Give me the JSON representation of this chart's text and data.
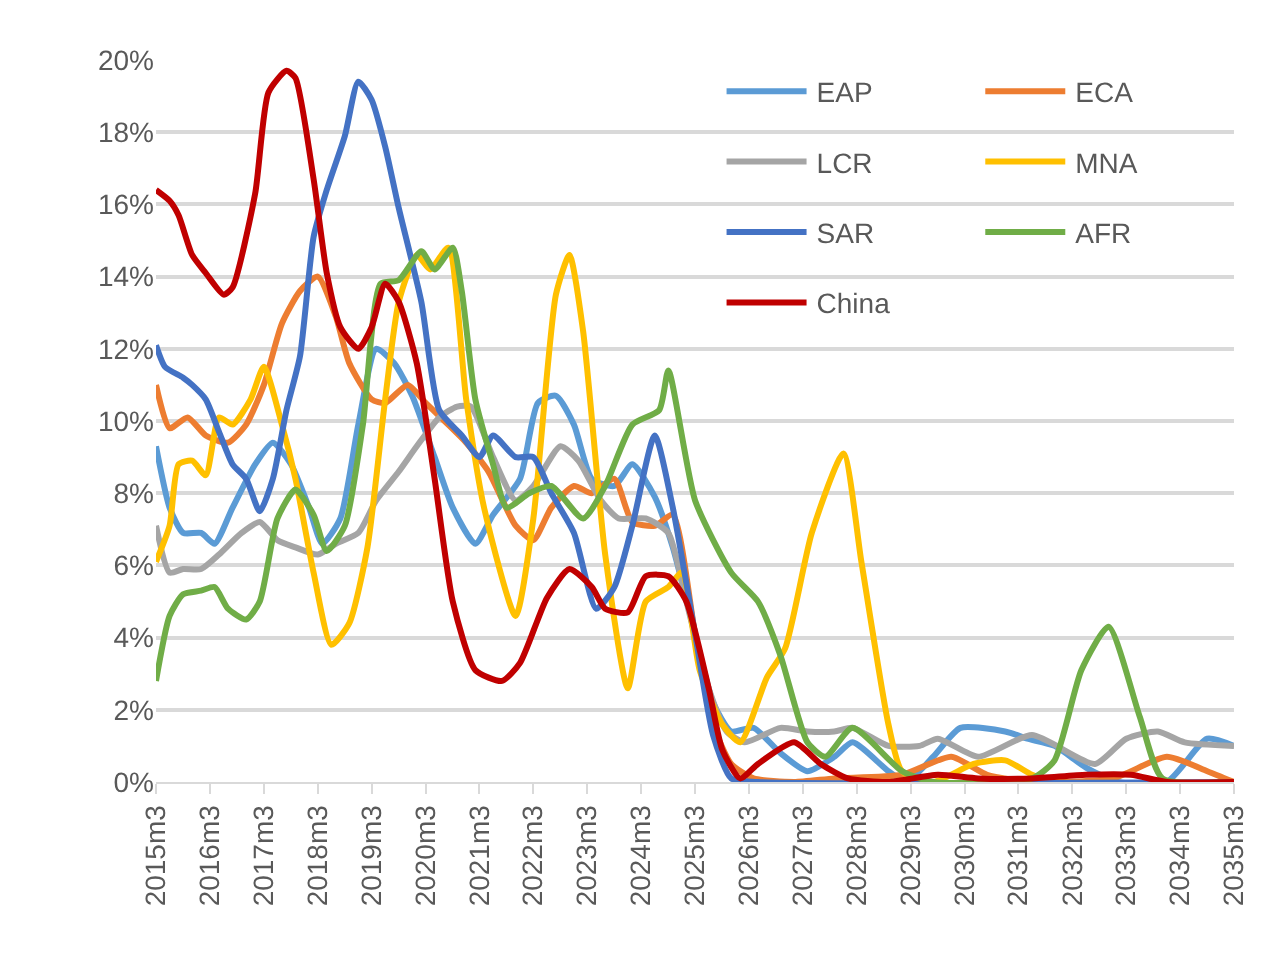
{
  "chart_data": {
    "type": "line",
    "xlim": [
      "2015-03",
      "2035-03"
    ],
    "ylim": [
      0,
      20
    ],
    "xticks": [
      {
        "value": "2015-03",
        "label": "2015m3"
      },
      {
        "value": "2016-03",
        "label": "2016m3"
      },
      {
        "value": "2017-03",
        "label": "2017m3"
      },
      {
        "value": "2018-03",
        "label": "2018m3"
      },
      {
        "value": "2019-03",
        "label": "2019m3"
      },
      {
        "value": "2020-03",
        "label": "2020m3"
      },
      {
        "value": "2021-03",
        "label": "2021m3"
      },
      {
        "value": "2022-03",
        "label": "2022m3"
      },
      {
        "value": "2023-03",
        "label": "2023m3"
      },
      {
        "value": "2024-03",
        "label": "2024m3"
      },
      {
        "value": "2025-03",
        "label": "2025m3"
      },
      {
        "value": "2026-03",
        "label": "2026m3"
      },
      {
        "value": "2027-03",
        "label": "2027m3"
      },
      {
        "value": "2028-03",
        "label": "2028m3"
      },
      {
        "value": "2029-03",
        "label": "2029m3"
      },
      {
        "value": "2030-03",
        "label": "2030m3"
      },
      {
        "value": "2031-03",
        "label": "2031m3"
      },
      {
        "value": "2032-03",
        "label": "2032m3"
      },
      {
        "value": "2033-03",
        "label": "2033m3"
      },
      {
        "value": "2034-03",
        "label": "2034m3"
      },
      {
        "value": "2035-03",
        "label": "2035m3"
      }
    ],
    "yticks": [
      {
        "value": 0,
        "label": "0%"
      },
      {
        "value": 2,
        "label": "2%"
      },
      {
        "value": 4,
        "label": "4%"
      },
      {
        "value": 6,
        "label": "6%"
      },
      {
        "value": 8,
        "label": "8%"
      },
      {
        "value": 10,
        "label": "10%"
      },
      {
        "value": 12,
        "label": "12%"
      },
      {
        "value": 14,
        "label": "14%"
      },
      {
        "value": 16,
        "label": "16%"
      },
      {
        "value": 18,
        "label": "18%"
      },
      {
        "value": 20,
        "label": "20%"
      }
    ],
    "grid": "y",
    "legend": "top right",
    "marker": "none",
    "line_style": "solid",
    "series": [
      {
        "name": "EAP",
        "color": "#5b9bd5",
        "x": [
          "2015-03",
          "2015-06",
          "2015-09",
          "2016-01",
          "2016-04",
          "2016-08",
          "2017-01",
          "2017-05",
          "2017-09",
          "2018-01",
          "2018-04",
          "2018-08",
          "2018-12",
          "2019-04",
          "2019-08",
          "2019-12",
          "2020-05",
          "2020-09",
          "2021-02",
          "2021-06",
          "2021-12",
          "2022-04",
          "2022-08",
          "2022-12",
          "2023-04",
          "2023-09",
          "2024-01",
          "2024-06",
          "2024-10",
          "2025-03",
          "2025-07",
          "2025-11",
          "2026-04",
          "2026-10",
          "2027-04",
          "2027-10",
          "2028-02",
          "2028-10",
          "2029-02",
          "2029-08",
          "2030-02",
          "2030-12",
          "2031-05",
          "2031-11",
          "2032-06",
          "2033-01",
          "2033-12",
          "2034-09",
          "2035-03"
        ],
        "values": [
          9.3,
          7.6,
          6.9,
          6.9,
          6.6,
          7.6,
          8.8,
          9.4,
          8.8,
          7.6,
          6.6,
          7.3,
          9.9,
          12.0,
          11.6,
          10.7,
          9.0,
          7.6,
          6.6,
          7.4,
          8.4,
          10.5,
          10.7,
          9.9,
          8.4,
          8.2,
          8.8,
          7.9,
          6.5,
          4.1,
          2.2,
          1.4,
          1.5,
          0.8,
          0.3,
          0.7,
          1.1,
          0.3,
          0.0,
          0.7,
          1.5,
          1.4,
          1.2,
          1.0,
          0.4,
          0.0,
          0.0,
          1.2,
          1.0
        ]
      },
      {
        "name": "ECA",
        "color": "#ed7d31",
        "x": [
          "2015-03",
          "2015-06",
          "2015-10",
          "2016-02",
          "2016-07",
          "2016-11",
          "2017-03",
          "2017-07",
          "2017-11",
          "2018-03",
          "2018-07",
          "2018-10",
          "2019-03",
          "2019-06",
          "2019-11",
          "2020-03",
          "2020-08",
          "2020-12",
          "2021-05",
          "2021-11",
          "2022-03",
          "2022-07",
          "2022-12",
          "2023-04",
          "2023-09",
          "2024-01",
          "2024-06",
          "2024-10",
          "2025-03",
          "2025-07",
          "2025-11",
          "2026-04",
          "2027-01",
          "2027-10",
          "2029-01",
          "2029-12",
          "2030-08",
          "2031-06",
          "2032-12",
          "2033-12",
          "2034-09",
          "2035-03"
        ],
        "values": [
          11.0,
          9.8,
          10.1,
          9.6,
          9.4,
          9.9,
          11.0,
          12.7,
          13.6,
          14.0,
          12.9,
          11.6,
          10.6,
          10.5,
          11.0,
          10.5,
          9.9,
          9.4,
          8.6,
          7.1,
          6.7,
          7.6,
          8.2,
          8.0,
          8.4,
          7.2,
          7.1,
          7.4,
          4.1,
          1.6,
          0.5,
          0.1,
          0.0,
          0.1,
          0.2,
          0.7,
          0.2,
          0.0,
          0.1,
          0.7,
          0.3,
          0.0
        ]
      },
      {
        "name": "LCR",
        "color": "#a5a5a5",
        "x": [
          "2015-03",
          "2015-06",
          "2015-09",
          "2016-01",
          "2016-05",
          "2016-10",
          "2017-02",
          "2017-06",
          "2017-10",
          "2018-03",
          "2018-07",
          "2018-12",
          "2019-04",
          "2019-09",
          "2020-01",
          "2020-06",
          "2020-10",
          "2021-01",
          "2021-06",
          "2021-11",
          "2022-03",
          "2022-09",
          "2023-01",
          "2023-06",
          "2023-10",
          "2024-04",
          "2024-09",
          "2025-01",
          "2025-06",
          "2025-10",
          "2026-02",
          "2026-10",
          "2027-04",
          "2027-10",
          "2028-02",
          "2028-10",
          "2029-05",
          "2029-09",
          "2030-06",
          "2031-06",
          "2032-08",
          "2033-03",
          "2033-10",
          "2034-04",
          "2035-03"
        ],
        "values": [
          7.1,
          5.8,
          5.9,
          5.9,
          6.3,
          6.9,
          7.2,
          6.7,
          6.5,
          6.3,
          6.6,
          6.9,
          7.8,
          8.6,
          9.3,
          10.1,
          10.4,
          10.4,
          9.0,
          7.8,
          8.2,
          9.3,
          8.9,
          7.8,
          7.3,
          7.3,
          6.9,
          5.0,
          2.6,
          1.4,
          1.1,
          1.5,
          1.4,
          1.4,
          1.5,
          1.0,
          1.0,
          1.2,
          0.7,
          1.3,
          0.5,
          1.2,
          1.4,
          1.1,
          1.0
        ]
      },
      {
        "name": "MNA",
        "color": "#ffc000",
        "x": [
          "2015-03",
          "2015-06",
          "2015-08",
          "2015-11",
          "2016-02",
          "2016-05",
          "2016-08",
          "2016-12",
          "2017-03",
          "2017-07",
          "2017-10",
          "2018-02",
          "2018-06",
          "2018-10",
          "2019-02",
          "2019-06",
          "2019-09",
          "2020-01",
          "2020-04",
          "2020-08",
          "2020-12",
          "2021-04",
          "2021-11",
          "2022-03",
          "2022-08",
          "2022-11",
          "2023-02",
          "2023-07",
          "2023-12",
          "2024-04",
          "2024-09",
          "2024-12",
          "2025-04",
          "2025-09",
          "2026-01",
          "2026-07",
          "2026-11",
          "2027-05",
          "2027-12",
          "2028-04",
          "2028-10",
          "2029-01",
          "2029-08",
          "2030-05",
          "2030-12",
          "2031-06",
          "2031-11",
          "2035-03"
        ],
        "values": [
          6.1,
          7.1,
          8.8,
          8.9,
          8.5,
          10.1,
          9.9,
          10.6,
          11.5,
          9.9,
          8.4,
          5.8,
          3.8,
          4.4,
          6.5,
          10.6,
          13.3,
          14.6,
          14.2,
          14.8,
          10.6,
          7.6,
          4.6,
          7.3,
          13.5,
          14.6,
          12.5,
          6.3,
          2.6,
          5.0,
          5.4,
          5.8,
          3.1,
          1.6,
          1.1,
          2.9,
          3.7,
          6.9,
          9.1,
          6.1,
          1.6,
          0.3,
          0.0,
          0.5,
          0.6,
          0.2,
          0.0,
          0.0
        ]
      },
      {
        "name": "SAR",
        "color": "#4472c4",
        "x": [
          "2015-03",
          "2015-05",
          "2015-09",
          "2015-11",
          "2016-02",
          "2016-05",
          "2016-08",
          "2016-11",
          "2017-02",
          "2017-05",
          "2017-08",
          "2017-11",
          "2018-02",
          "2018-05",
          "2018-09",
          "2018-12",
          "2019-03",
          "2019-06",
          "2019-09",
          "2020-02",
          "2020-06",
          "2020-11",
          "2021-03",
          "2021-06",
          "2021-11",
          "2022-03",
          "2022-07",
          "2022-12",
          "2023-05",
          "2023-09",
          "2024-01",
          "2024-06",
          "2024-10",
          "2025-03",
          "2025-07",
          "2025-11",
          "2026-05",
          "2035-03"
        ],
        "values": [
          12.1,
          11.5,
          11.2,
          11.0,
          10.6,
          9.7,
          8.8,
          8.4,
          7.5,
          8.4,
          10.3,
          11.8,
          15.1,
          16.4,
          17.9,
          19.4,
          18.9,
          17.6,
          15.9,
          13.3,
          10.3,
          9.6,
          9.0,
          9.6,
          9.0,
          9.0,
          8.0,
          6.9,
          4.8,
          5.4,
          7.1,
          9.6,
          7.6,
          4.1,
          1.3,
          0.1,
          0.0,
          0.0
        ]
      },
      {
        "name": "AFR",
        "color": "#70ad47",
        "x": [
          "2015-03",
          "2015-06",
          "2015-09",
          "2016-01",
          "2016-04",
          "2016-07",
          "2016-11",
          "2017-02",
          "2017-06",
          "2017-10",
          "2018-02",
          "2018-05",
          "2018-09",
          "2019-01",
          "2019-05",
          "2019-09",
          "2020-02",
          "2020-05",
          "2020-09",
          "2020-11",
          "2021-02",
          "2021-06",
          "2021-09",
          "2022-02",
          "2022-07",
          "2023-02",
          "2023-07",
          "2024-01",
          "2024-07",
          "2024-09",
          "2025-03",
          "2025-11",
          "2026-05",
          "2026-10",
          "2027-04",
          "2027-08",
          "2028-02",
          "2029-01",
          "2029-08",
          "2031-06",
          "2031-11",
          "2032-05",
          "2032-11",
          "2033-06",
          "2033-11",
          "2035-03"
        ],
        "values": [
          2.8,
          4.6,
          5.2,
          5.3,
          5.4,
          4.8,
          4.5,
          5.0,
          7.3,
          8.1,
          7.4,
          6.4,
          7.1,
          9.9,
          13.8,
          13.9,
          14.7,
          14.2,
          14.8,
          13.6,
          10.6,
          8.8,
          7.6,
          8.0,
          8.2,
          7.3,
          8.2,
          9.9,
          10.3,
          11.4,
          7.8,
          5.8,
          5.0,
          3.5,
          1.1,
          0.7,
          1.5,
          0.3,
          0.0,
          0.1,
          0.6,
          3.1,
          4.3,
          1.8,
          0.1,
          0.0
        ]
      },
      {
        "name": "China",
        "color": "#c00000",
        "x": [
          "2015-03",
          "2015-06",
          "2015-08",
          "2015-11",
          "2016-02",
          "2016-06",
          "2016-08",
          "2017-01",
          "2017-04",
          "2017-08",
          "2017-10",
          "2018-02",
          "2018-05",
          "2018-08",
          "2018-12",
          "2019-03",
          "2019-06",
          "2019-09",
          "2020-01",
          "2020-05",
          "2020-09",
          "2021-02",
          "2021-08",
          "2021-12",
          "2022-06",
          "2022-11",
          "2023-04",
          "2023-07",
          "2023-12",
          "2024-04",
          "2024-09",
          "2025-01",
          "2025-06",
          "2025-09",
          "2026-01",
          "2026-05",
          "2027-01",
          "2027-07",
          "2028-01",
          "2028-10",
          "2029-09",
          "2030-06",
          "2031-06",
          "2032-06",
          "2033-04",
          "2033-12",
          "2035-03"
        ],
        "values": [
          16.4,
          16.1,
          15.7,
          14.6,
          14.1,
          13.5,
          13.7,
          16.3,
          19.1,
          19.7,
          19.5,
          16.7,
          14.1,
          12.6,
          12.0,
          12.6,
          13.8,
          13.3,
          11.6,
          8.4,
          5.0,
          3.1,
          2.8,
          3.3,
          5.1,
          5.9,
          5.4,
          4.8,
          4.7,
          5.7,
          5.7,
          5.0,
          2.6,
          0.9,
          0.1,
          0.5,
          1.1,
          0.5,
          0.1,
          0.0,
          0.2,
          0.1,
          0.1,
          0.2,
          0.2,
          0.0,
          0.0
        ]
      }
    ]
  }
}
